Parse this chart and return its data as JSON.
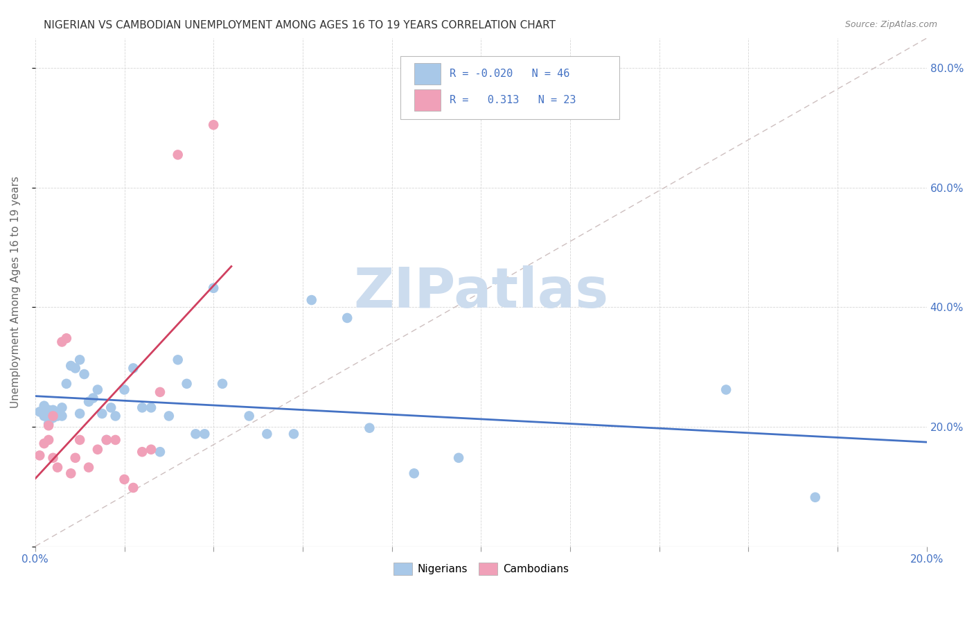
{
  "title": "NIGERIAN VS CAMBODIAN UNEMPLOYMENT AMONG AGES 16 TO 19 YEARS CORRELATION CHART",
  "source": "Source: ZipAtlas.com",
  "ylabel": "Unemployment Among Ages 16 to 19 years",
  "xlim": [
    0.0,
    0.2
  ],
  "ylim": [
    0.0,
    0.85
  ],
  "xticks": [
    0.0,
    0.02,
    0.04,
    0.06,
    0.08,
    0.1,
    0.12,
    0.14,
    0.16,
    0.18,
    0.2
  ],
  "yticks": [
    0.0,
    0.2,
    0.4,
    0.6,
    0.8
  ],
  "xticklabels": [
    "0.0%",
    "",
    "",
    "",
    "",
    "",
    "",
    "",
    "",
    "",
    "20.0%"
  ],
  "yticklabels": [
    "",
    "20.0%",
    "40.0%",
    "60.0%",
    "80.0%"
  ],
  "nigerian_color": "#a8c8e8",
  "cambodian_color": "#f0a0b8",
  "nigerian_line_color": "#4472c4",
  "cambodian_line_color": "#d04060",
  "diagonal_color": "#c8b8b8",
  "nigerian_x": [
    0.001,
    0.002,
    0.002,
    0.003,
    0.003,
    0.004,
    0.004,
    0.005,
    0.005,
    0.006,
    0.006,
    0.007,
    0.008,
    0.009,
    0.01,
    0.01,
    0.011,
    0.012,
    0.013,
    0.014,
    0.015,
    0.016,
    0.017,
    0.018,
    0.02,
    0.022,
    0.024,
    0.026,
    0.028,
    0.03,
    0.032,
    0.034,
    0.036,
    0.038,
    0.04,
    0.042,
    0.048,
    0.052,
    0.058,
    0.062,
    0.07,
    0.075,
    0.085,
    0.095,
    0.155,
    0.175
  ],
  "nigerian_y": [
    0.225,
    0.235,
    0.218,
    0.228,
    0.205,
    0.215,
    0.228,
    0.222,
    0.218,
    0.232,
    0.218,
    0.272,
    0.302,
    0.298,
    0.312,
    0.222,
    0.288,
    0.242,
    0.248,
    0.262,
    0.222,
    0.178,
    0.232,
    0.218,
    0.262,
    0.298,
    0.232,
    0.232,
    0.158,
    0.218,
    0.312,
    0.272,
    0.188,
    0.188,
    0.432,
    0.272,
    0.218,
    0.188,
    0.188,
    0.412,
    0.382,
    0.198,
    0.122,
    0.148,
    0.262,
    0.082
  ],
  "cambodian_x": [
    0.001,
    0.002,
    0.003,
    0.003,
    0.004,
    0.004,
    0.005,
    0.006,
    0.007,
    0.008,
    0.009,
    0.01,
    0.012,
    0.014,
    0.016,
    0.018,
    0.02,
    0.022,
    0.024,
    0.026,
    0.028,
    0.032,
    0.04
  ],
  "cambodian_y": [
    0.152,
    0.172,
    0.178,
    0.202,
    0.218,
    0.148,
    0.132,
    0.342,
    0.348,
    0.122,
    0.148,
    0.178,
    0.132,
    0.162,
    0.178,
    0.178,
    0.112,
    0.098,
    0.158,
    0.162,
    0.258,
    0.655,
    0.705
  ],
  "background_color": "#ffffff",
  "watermark_text": "ZIPatlas",
  "watermark_color": "#ccdcee",
  "legend_text_color": "#4472c4",
  "tick_color": "#4472c4",
  "ylabel_color": "#666666"
}
